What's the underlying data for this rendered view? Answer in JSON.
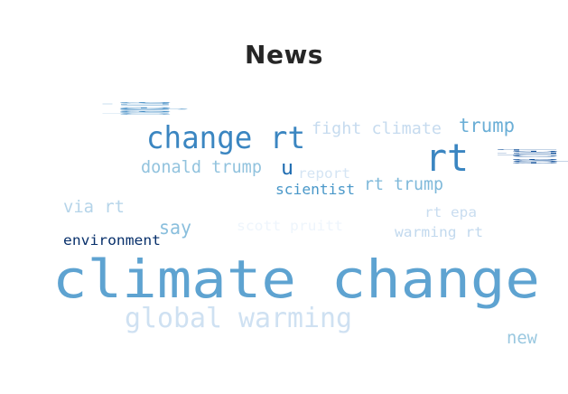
{
  "chart_data": {
    "type": "wordcloud",
    "title": "News",
    "colormap": "Blues",
    "words": [
      {
        "text": "climate change",
        "color": "#5ea3d1"
      },
      {
        "text": "global warming",
        "color": "#cfe1f2"
      },
      {
        "text": "change rt",
        "color": "#3b86c1"
      },
      {
        "text": "rt",
        "color": "#3a85c1"
      },
      {
        "text": "trump",
        "color": "#6aaed6"
      },
      {
        "text": "fight climate",
        "color": "#c6dbef"
      },
      {
        "text": "donald trump",
        "color": "#92c3de"
      },
      {
        "text": "u",
        "color": "#1f6cb1"
      },
      {
        "text": "report",
        "color": "#d5e5f4"
      },
      {
        "text": "scientist",
        "color": "#4a98c9"
      },
      {
        "text": "rt trump",
        "color": "#7fb9da"
      },
      {
        "text": "epa chief",
        "color": "#15539c"
      },
      {
        "text": "change via",
        "color": "#3c88c2"
      },
      {
        "text": "via rt",
        "color": "#b5d4e9"
      },
      {
        "text": "say",
        "color": "#8abfdd"
      },
      {
        "text": "scott pruitt",
        "color": "#eef5fc"
      },
      {
        "text": "rt epa",
        "color": "#c9ddf0"
      },
      {
        "text": "environment",
        "color": "#08306b"
      },
      {
        "text": "warming rt",
        "color": "#c2d9ee"
      },
      {
        "text": "new",
        "color": "#9ac8e0"
      }
    ]
  }
}
